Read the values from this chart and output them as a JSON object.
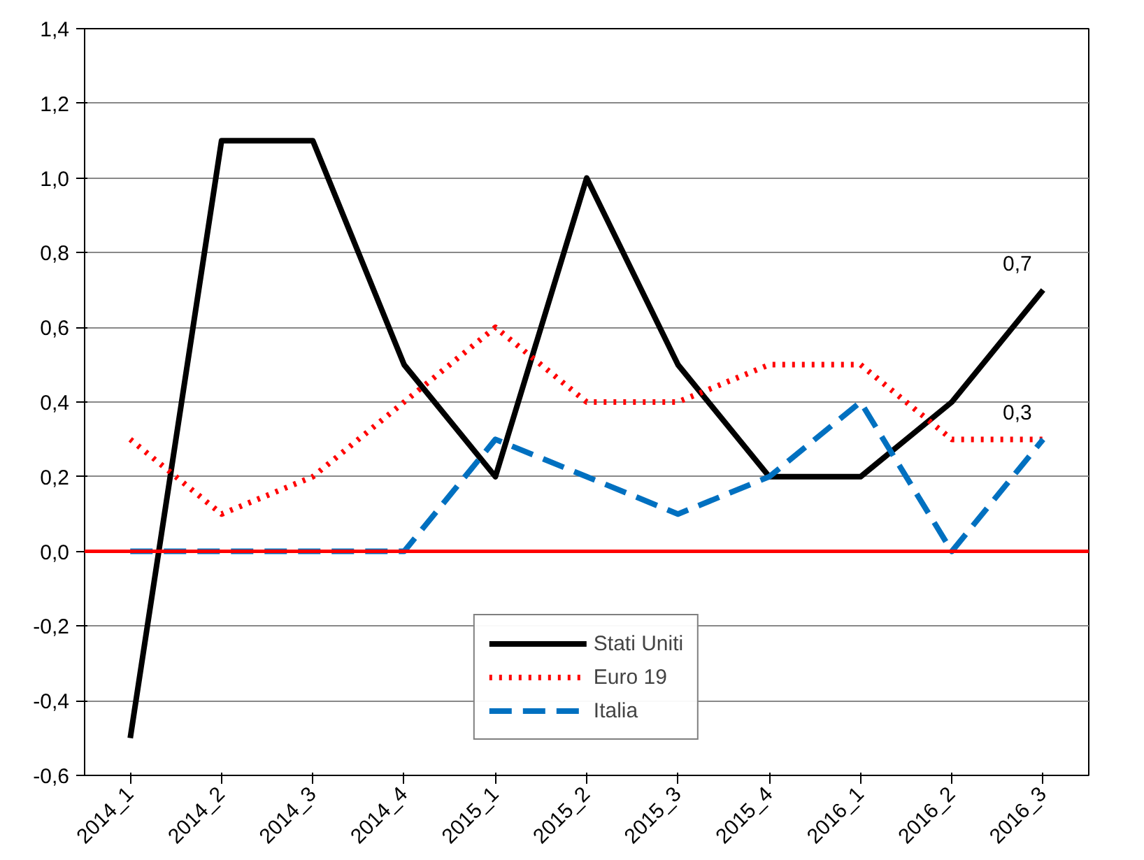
{
  "chart_data": {
    "type": "line",
    "categories": [
      "2014_1",
      "2014_2",
      "2014_3",
      "2014_4",
      "2015_1",
      "2015_2",
      "2015_3",
      "2015_4",
      "2016_1",
      "2016_2",
      "2016_3"
    ],
    "series": [
      {
        "name": "Stati Uniti",
        "color": "#000000",
        "line_style": "solid",
        "values": [
          -0.5,
          1.1,
          1.1,
          0.5,
          0.2,
          1.0,
          0.5,
          0.2,
          0.2,
          0.4,
          0.7
        ],
        "value_labels": [
          null,
          null,
          null,
          null,
          null,
          null,
          null,
          null,
          null,
          null,
          "0,7"
        ]
      },
      {
        "name": "Euro 19",
        "color": "#ff0000",
        "line_style": "dotted",
        "values": [
          0.3,
          0.1,
          0.2,
          0.4,
          0.6,
          0.4,
          0.4,
          0.5,
          0.5,
          0.3,
          0.3
        ]
      },
      {
        "name": "Italia",
        "color": "#0070c0",
        "line_style": "dashed",
        "values": [
          0.0,
          0.0,
          0.0,
          0.0,
          0.3,
          0.2,
          0.1,
          0.2,
          0.4,
          0.0,
          0.3
        ],
        "value_labels": [
          null,
          null,
          null,
          null,
          null,
          null,
          null,
          null,
          null,
          null,
          "0,3"
        ]
      }
    ],
    "ylim": [
      -0.6,
      1.4
    ],
    "yticks": [
      {
        "value": -0.6,
        "label": "-0,6"
      },
      {
        "value": -0.4,
        "label": "-0,4"
      },
      {
        "value": -0.2,
        "label": "-0,2"
      },
      {
        "value": 0,
        "label": "0,0"
      },
      {
        "value": 0.2,
        "label": "0,2"
      },
      {
        "value": 0.4,
        "label": "0,4"
      },
      {
        "value": 0.6,
        "label": "0,6"
      },
      {
        "value": 0.8,
        "label": "0,8"
      },
      {
        "value": 1.0,
        "label": "1,0"
      },
      {
        "value": 1.2,
        "label": "1,2"
      },
      {
        "value": 1.4,
        "label": "1,4"
      }
    ],
    "ref_lines": [
      {
        "axis": "y",
        "value": 0,
        "color": "#ff0000"
      }
    ],
    "grid": "y",
    "legend": "bottom",
    "marker": "none"
  }
}
